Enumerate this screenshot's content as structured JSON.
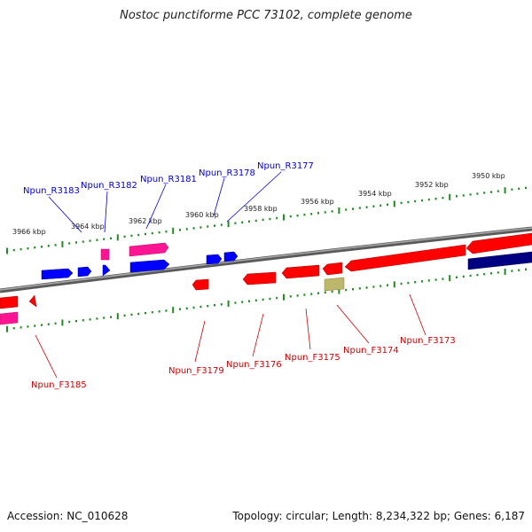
{
  "title": "Nostoc punctiforme PCC 73102, complete genome",
  "footer": {
    "accession": "Accession: NC_010628",
    "summary": "Topology: circular; Length: 8,234,322 bp; Genes: 6,187"
  },
  "colors": {
    "backbone": "#808080",
    "tick": "#228b22",
    "reverse_cds": "#0000ff",
    "forward_cds": "#ff0000",
    "rna": "#ff1493",
    "dark_feature": "#000080",
    "misc_feature": "#bdb76b",
    "reverse_label": "#0000cc",
    "forward_label": "#cc0000"
  },
  "ruler": {
    "labels": [
      "3966 kbp",
      "3964 kbp",
      "3962 kbp",
      "3960 kbp",
      "3958 kbp",
      "3956 kbp",
      "3954 kbp",
      "3952 kbp",
      "3950 kbp"
    ]
  },
  "reverse_genes": [
    "Npun_R3183",
    "Npun_R3182",
    "Npun_R3181",
    "Npun_R3178",
    "Npun_R3177"
  ],
  "forward_genes": [
    "Npun_F3185",
    "Npun_F3179",
    "Npun_F3176",
    "Npun_F3175",
    "Npun_F3174",
    "Npun_F3173"
  ]
}
